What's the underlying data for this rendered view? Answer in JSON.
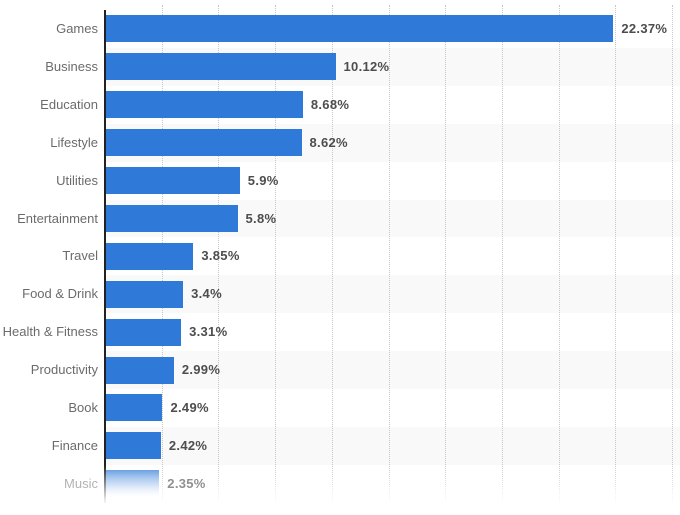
{
  "chart_data": {
    "type": "bar",
    "orientation": "horizontal",
    "title": "",
    "xlabel": "",
    "ylabel": "",
    "categories": [
      "Games",
      "Business",
      "Education",
      "Lifestyle",
      "Utilities",
      "Entertainment",
      "Travel",
      "Food & Drink",
      "Health & Fitness",
      "Productivity",
      "Book",
      "Finance",
      "Music"
    ],
    "values": [
      22.37,
      10.12,
      8.68,
      8.62,
      5.9,
      5.8,
      3.85,
      3.4,
      3.31,
      2.99,
      2.49,
      2.42,
      2.35
    ],
    "value_labels": [
      "22.37%",
      "10.12%",
      "8.68%",
      "8.62%",
      "5.9%",
      "5.8%",
      "3.85%",
      "3.4%",
      "3.31%",
      "2.99%",
      "2.49%",
      "2.42%",
      "2.35%"
    ],
    "xlim": [
      0,
      25
    ],
    "gridline_step": 2.5,
    "grid": true,
    "legend": false,
    "alternating_row_bands": true,
    "faded_last_row": true,
    "faded_row_category": "Music"
  },
  "colors": {
    "bar": "#2f7ad9",
    "row_band": "#f9f9f9",
    "gridline": "#c7c7c7",
    "axis_line": "#222222",
    "category_label": "#6b6b6b",
    "value_label": "#4d4d4d",
    "faded_category_label": "#b3b3b3",
    "faded_value_label": "#909090",
    "background": "#ffffff"
  }
}
